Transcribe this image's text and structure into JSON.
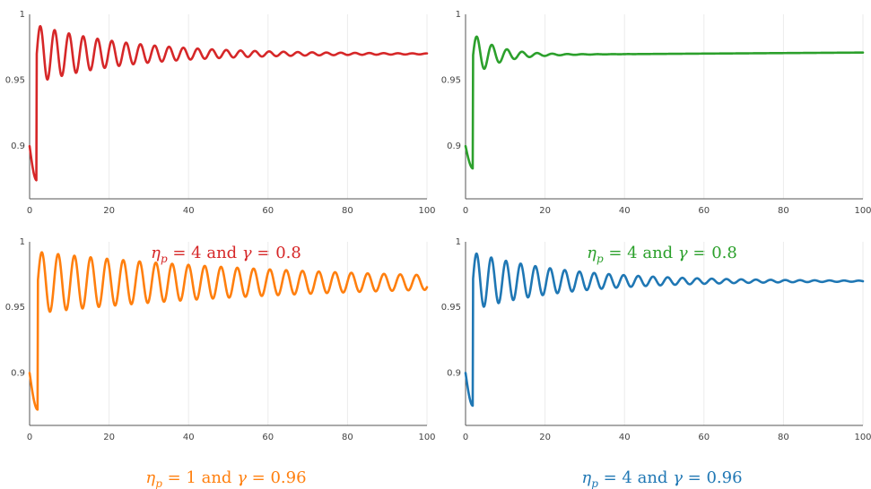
{
  "chart_data": [
    {
      "type": "line",
      "caption": {
        "eta": "4",
        "gamma": "0.8"
      },
      "color": "#d62728",
      "xlim": [
        0,
        100
      ],
      "ylim": [
        0.86,
        1.0
      ],
      "xticks": [
        "0",
        "20",
        "40",
        "60",
        "80",
        "100"
      ],
      "yticks": [
        "0.9",
        "0.95",
        "1"
      ],
      "grid": true,
      "series": [
        {
          "start": 0.9,
          "trough": 0.874,
          "steady": 0.97,
          "first_peak": 0.991,
          "period": 3.6,
          "peak_decay": 0.86,
          "drift": 0.0
        }
      ]
    },
    {
      "type": "line",
      "caption": {
        "eta": "4",
        "gamma": "0.8"
      },
      "color": "#2ca02c",
      "xlim": [
        0,
        100
      ],
      "ylim": [
        0.86,
        1.0
      ],
      "xticks": [
        "0",
        "20",
        "40",
        "60",
        "80",
        "100"
      ],
      "yticks": [
        "0.9",
        "0.95",
        "1"
      ],
      "grid": true,
      "series": [
        {
          "start": 0.9,
          "trough": 0.883,
          "steady": 0.969,
          "first_peak": 0.983,
          "period": 3.8,
          "peak_decay": 0.55,
          "drift": 0.002
        }
      ]
    },
    {
      "type": "line",
      "caption": {
        "eta": "1",
        "gamma": "0.96"
      },
      "color": "#ff7f0e",
      "xlim": [
        0,
        100
      ],
      "ylim": [
        0.86,
        1.0
      ],
      "xticks": [
        "0",
        "20",
        "40",
        "60",
        "80",
        "100"
      ],
      "yticks": [
        "0.9",
        "0.95",
        "1"
      ],
      "grid": true,
      "series": [
        {
          "start": 0.9,
          "trough": 0.872,
          "steady": 0.969,
          "first_peak": 0.992,
          "period": 4.1,
          "peak_decay": 0.942,
          "drift": 0.0
        }
      ]
    },
    {
      "type": "line",
      "caption": {
        "eta": "4",
        "gamma": "0.96"
      },
      "color": "#1f77b4",
      "xlim": [
        0,
        100
      ],
      "ylim": [
        0.86,
        1.0
      ],
      "xticks": [
        "0",
        "20",
        "40",
        "60",
        "80",
        "100"
      ],
      "yticks": [
        "0.9",
        "0.95",
        "1"
      ],
      "grid": true,
      "series": [
        {
          "start": 0.9,
          "trough": 0.875,
          "steady": 0.97,
          "first_peak": 0.991,
          "period": 3.7,
          "peak_decay": 0.86,
          "drift": 0.0
        }
      ]
    }
  ]
}
